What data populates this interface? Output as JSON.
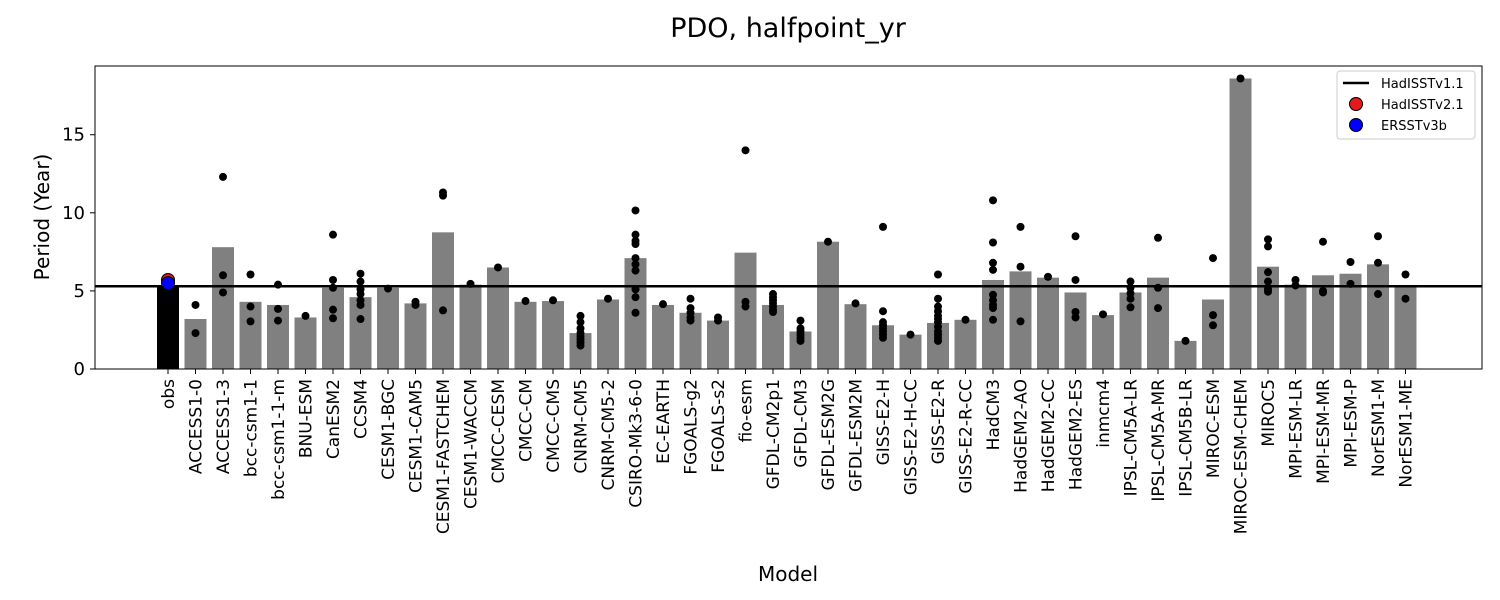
{
  "chart_data": {
    "type": "bar",
    "title": "PDO, halfpoint_yr",
    "xlabel": "Model",
    "ylabel": "Period (Year)",
    "ylim": [
      0,
      19.4
    ],
    "yticks": [
      0,
      5,
      10,
      15
    ],
    "grid": false,
    "legend_position": "top-right",
    "colors": {
      "obs_bar": "#000000",
      "model_bar": "#808080",
      "member_point": "#000000",
      "hadisst_v11_line": "#000000",
      "hadisst_v21_marker": "#e31a1c",
      "ersst_v3b_marker": "#0000ff"
    },
    "reference_line": {
      "name": "HadISSTv1.1",
      "value": 5.3
    },
    "legend": [
      {
        "label": "HadISSTv1.1",
        "kind": "line",
        "color": "#000000"
      },
      {
        "label": "HadISSTv2.1",
        "kind": "marker",
        "color": "#e31a1c"
      },
      {
        "label": "ERSSTv3b",
        "kind": "marker",
        "color": "#0000ff"
      }
    ],
    "obs_markers": [
      {
        "name": "HadISSTv2.1",
        "value": 5.7
      },
      {
        "name": "ERSSTv3b",
        "value": 5.5
      }
    ],
    "categories": [
      "obs",
      "ACCESS1-0",
      "ACCESS1-3",
      "bcc-csm1-1",
      "bcc-csm1-1-m",
      "BNU-ESM",
      "CanESM2",
      "CCSM4",
      "CESM1-BGC",
      "CESM1-CAM5",
      "CESM1-FASTCHEM",
      "CESM1-WACCM",
      "CMCC-CESM",
      "CMCC-CM",
      "CMCC-CMS",
      "CNRM-CM5",
      "CNRM-CM5-2",
      "CSIRO-Mk3-6-0",
      "EC-EARTH",
      "FGOALS-g2",
      "FGOALS-s2",
      "fio-esm",
      "GFDL-CM2p1",
      "GFDL-CM3",
      "GFDL-ESM2G",
      "GFDL-ESM2M",
      "GISS-E2-H",
      "GISS-E2-H-CC",
      "GISS-E2-R",
      "GISS-E2-R-CC",
      "HadCM3",
      "HadGEM2-AO",
      "HadGEM2-CC",
      "HadGEM2-ES",
      "inmcm4",
      "IPSL-CM5A-LR",
      "IPSL-CM5A-MR",
      "IPSL-CM5B-LR",
      "MIROC-ESM",
      "MIROC-ESM-CHEM",
      "MIROC5",
      "MPI-ESM-LR",
      "MPI-ESM-MR",
      "MPI-ESM-P",
      "NorESM1-M",
      "NorESM1-ME"
    ],
    "values": [
      5.3,
      3.2,
      7.8,
      4.3,
      4.1,
      3.3,
      5.2,
      4.6,
      5.2,
      4.2,
      8.75,
      5.4,
      6.5,
      4.3,
      4.35,
      2.3,
      4.45,
      7.1,
      4.1,
      3.6,
      3.1,
      7.45,
      4.1,
      2.4,
      8.15,
      4.15,
      2.8,
      2.2,
      2.95,
      3.15,
      5.7,
      6.25,
      5.85,
      4.9,
      3.45,
      4.9,
      5.85,
      1.8,
      4.45,
      18.6,
      6.55,
      5.4,
      6.0,
      6.1,
      6.7,
      5.3
    ],
    "members": [
      [],
      [
        4.1,
        2.3
      ],
      [
        12.3,
        6.0,
        4.9
      ],
      [
        6.05,
        4.0,
        3.05
      ],
      [
        5.4,
        3.85,
        3.1
      ],
      [
        3.4
      ],
      [
        8.6,
        5.7,
        5.2,
        3.8,
        3.25
      ],
      [
        6.1,
        5.6,
        5.1,
        4.8,
        4.4,
        4.1,
        3.2
      ],
      [
        5.15
      ],
      [
        4.3,
        4.1
      ],
      [
        11.3,
        11.1,
        3.75
      ],
      [
        5.45
      ],
      [
        6.5
      ],
      [
        4.35
      ],
      [
        4.4
      ],
      [
        3.4,
        3.0,
        2.6,
        2.3,
        2.1,
        1.9,
        1.7,
        1.5
      ],
      [
        4.5
      ],
      [
        10.15,
        8.6,
        8.2,
        8.0,
        7.1,
        6.7,
        6.3,
        5.1,
        4.6,
        3.6
      ],
      [
        4.15
      ],
      [
        4.5,
        3.9,
        3.6,
        3.3,
        3.1
      ],
      [
        3.3,
        3.1
      ],
      [
        14.0,
        4.3,
        4.0
      ],
      [
        4.8,
        4.6,
        4.4,
        4.2,
        4.0,
        3.8,
        3.65
      ],
      [
        3.1,
        2.6,
        2.4,
        2.2,
        2.0,
        1.8
      ],
      [
        8.15
      ],
      [
        4.2
      ],
      [
        9.1,
        3.7,
        3.0,
        2.8,
        2.6,
        2.4,
        2.2,
        2.0
      ],
      [
        2.2
      ],
      [
        6.05,
        4.5,
        4.0,
        3.7,
        3.4,
        3.2,
        3.0,
        2.7,
        2.4,
        2.2,
        2.0,
        1.8
      ],
      [
        3.15
      ],
      [
        10.8,
        8.1,
        6.8,
        6.35,
        4.75,
        4.4,
        4.1,
        3.9,
        3.15
      ],
      [
        9.1,
        6.55,
        3.05
      ],
      [
        5.9
      ],
      [
        8.5,
        5.7,
        3.65,
        3.3
      ],
      [
        3.5
      ],
      [
        5.6,
        5.2,
        4.85,
        4.5,
        3.95
      ],
      [
        8.4,
        5.2,
        3.9
      ],
      [
        1.8
      ],
      [
        7.1,
        3.45,
        2.8
      ],
      [
        18.6
      ],
      [
        8.3,
        7.85,
        6.2,
        5.6,
        5.1,
        4.95
      ],
      [
        5.7,
        5.35
      ],
      [
        8.15,
        5.0,
        4.9
      ],
      [
        6.85,
        5.45
      ],
      [
        8.5,
        6.8,
        4.8
      ],
      [
        6.05,
        4.5
      ]
    ]
  }
}
